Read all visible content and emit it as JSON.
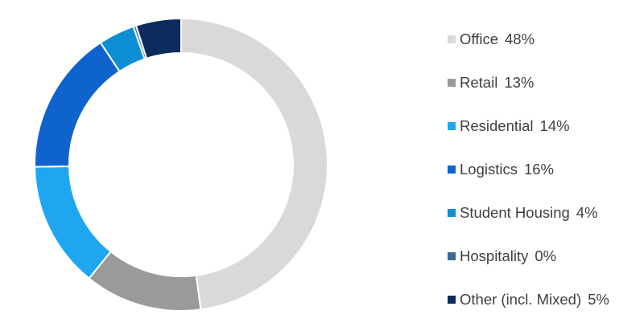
{
  "chart_data": {
    "type": "pie",
    "variant": "donut",
    "title": "",
    "slices": [
      {
        "label": "Office",
        "value": 48,
        "value_label": "48%",
        "color": "#d9d9d9",
        "stroke": "#ffffff"
      },
      {
        "label": "Retail",
        "value": 13,
        "value_label": "13%",
        "color": "#9a9a9a",
        "stroke": "#ffffff"
      },
      {
        "label": "Residential",
        "value": 14,
        "value_label": "14%",
        "color": "#1ea7f0",
        "stroke": "#ffffff"
      },
      {
        "label": "Logistics",
        "value": 16,
        "value_label": "16%",
        "color": "#0f63cc",
        "stroke": "#ffffff"
      },
      {
        "label": "Student Housing",
        "value": 4,
        "value_label": "4%",
        "color": "#0e8ed4",
        "stroke": "#ffffff"
      },
      {
        "label": "Hospitality",
        "value": 0.3,
        "value_label": "0%",
        "color": "#3b6a93",
        "stroke": "#ffffff"
      },
      {
        "label": "Other (incl. Mixed)",
        "value": 5,
        "value_label": "5%",
        "color": "#0b2c5c",
        "stroke": "#ffffff"
      }
    ],
    "start": "12 o'clock",
    "direction": "clockwise",
    "legend": "right"
  }
}
